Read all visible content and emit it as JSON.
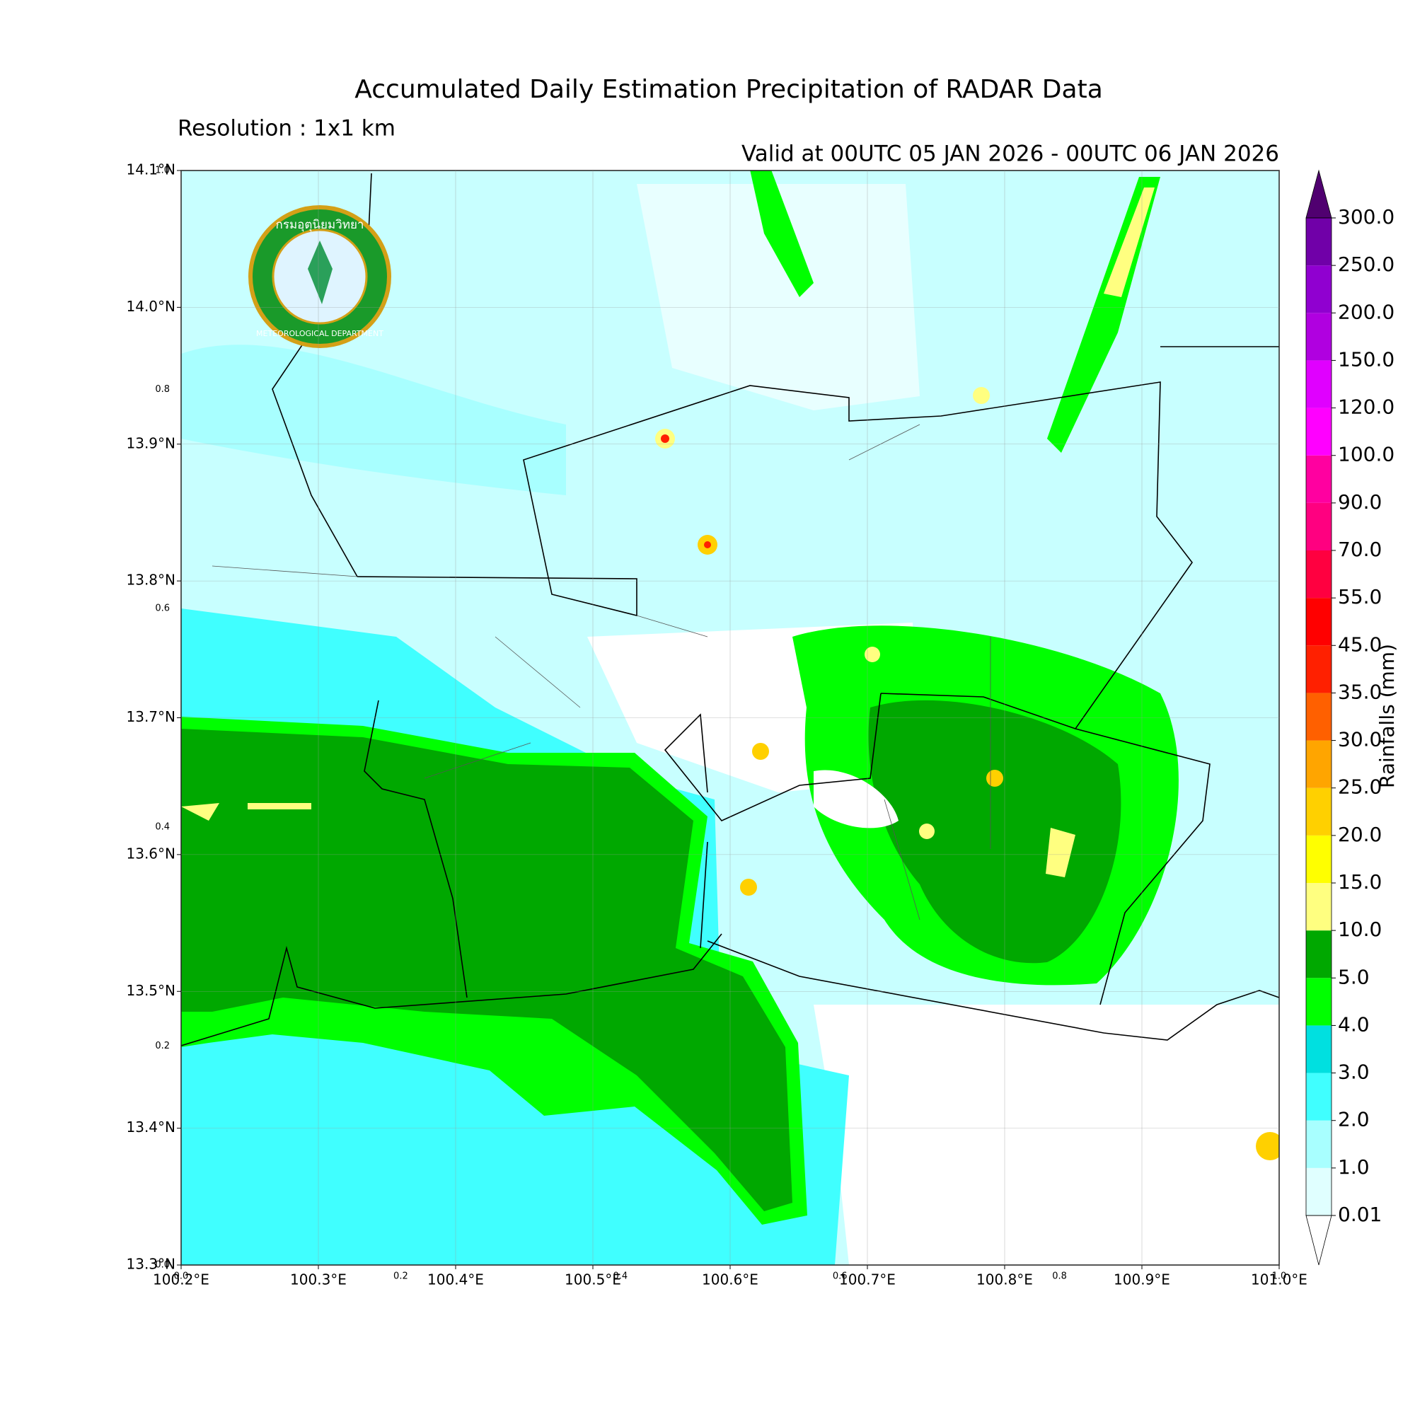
{
  "header": {
    "title": "Accumulated Daily Estimation Precipitation of RADAR Data",
    "subtitle": "Resolution : 1x1 km",
    "valid": "Valid at 00UTC 05 JAN 2026 - 00UTC 06 JAN 2026"
  },
  "logo": {
    "thai": "กรมอุตุนิยมวิทยา",
    "english": "METEOROLOGICAL DEPARTMENT"
  },
  "map": {
    "lon_range": [
      100.2,
      101.0
    ],
    "lat_range": [
      13.3,
      14.1
    ],
    "grid": true,
    "lon_ticks": [
      {
        "value": 100.2,
        "label": "100.2°E"
      },
      {
        "value": 100.3,
        "label": "100.3°E"
      },
      {
        "value": 100.4,
        "label": "100.4°E"
      },
      {
        "value": 100.5,
        "label": "100.5°E"
      },
      {
        "value": 100.6,
        "label": "100.6°E"
      },
      {
        "value": 100.7,
        "label": "100.7°E"
      },
      {
        "value": 100.8,
        "label": "100.8°E"
      },
      {
        "value": 100.9,
        "label": "100.9°E"
      },
      {
        "value": 101.0,
        "label": "101.0°E"
      }
    ],
    "lat_ticks": [
      {
        "value": 13.3,
        "label": "13.3°N"
      },
      {
        "value": 13.4,
        "label": "13.4°N"
      },
      {
        "value": 13.5,
        "label": "13.5°N"
      },
      {
        "value": 13.6,
        "label": "13.6°N"
      },
      {
        "value": 13.7,
        "label": "13.7°N"
      },
      {
        "value": 13.8,
        "label": "13.8°N"
      },
      {
        "value": 13.9,
        "label": "13.9°N"
      },
      {
        "value": 14.0,
        "label": "14.0°N"
      },
      {
        "value": 14.1,
        "label": "14.1°N"
      }
    ],
    "frac_x_ticks": [
      {
        "value": 0,
        "label": "0.0"
      },
      0.2,
      0.4,
      0.6,
      0.8,
      {
        "value": 1,
        "label": "1.0"
      }
    ],
    "frac_y_ticks": [
      {
        "value": 0,
        "label": "0.0"
      },
      0.2,
      0.4,
      0.6,
      0.8,
      {
        "value": 1,
        "label": "1.0"
      }
    ]
  },
  "colorbar": {
    "label": "Rainfalls (mm)",
    "levels": [
      0.01,
      {
        "value": 1,
        "label": "1.0"
      },
      {
        "value": 2,
        "label": "2.0"
      },
      {
        "value": 3,
        "label": "3.0"
      },
      {
        "value": 4,
        "label": "4.0"
      },
      {
        "value": 5,
        "label": "5.0"
      },
      {
        "value": 10,
        "label": "10.0"
      },
      {
        "value": 15,
        "label": "15.0"
      },
      {
        "value": 20,
        "label": "20.0"
      },
      {
        "value": 25,
        "label": "25.0"
      },
      {
        "value": 30,
        "label": "30.0"
      },
      {
        "value": 35,
        "label": "35.0"
      },
      {
        "value": 45,
        "label": "45.0"
      },
      {
        "value": 55,
        "label": "55.0"
      },
      {
        "value": 70,
        "label": "70.0"
      },
      {
        "value": 90,
        "label": "90.0"
      },
      {
        "value": 100,
        "label": "100.0"
      },
      {
        "value": 120,
        "label": "120.0"
      },
      {
        "value": 150,
        "label": "150.0"
      },
      {
        "value": 200,
        "label": "200.0"
      },
      {
        "value": 250,
        "label": "250.0"
      },
      {
        "value": 300,
        "label": "300.0"
      }
    ],
    "colors": [
      "#e0ffff",
      "#a8ffff",
      "#40ffff",
      "#00e0e0",
      "#00ff00",
      "#00a800",
      "#ffff80",
      "#ffff00",
      "#ffd000",
      "#ffa500",
      "#ff6000",
      "#ff2000",
      "#ff0000",
      "#ff0040",
      "#ff0080",
      "#ff00a0",
      "#ff00ff",
      "#e000ff",
      "#b000e0",
      "#9000d0",
      "#7000a8"
    ],
    "over_color": "#500070",
    "under_color": "#ffffff"
  }
}
